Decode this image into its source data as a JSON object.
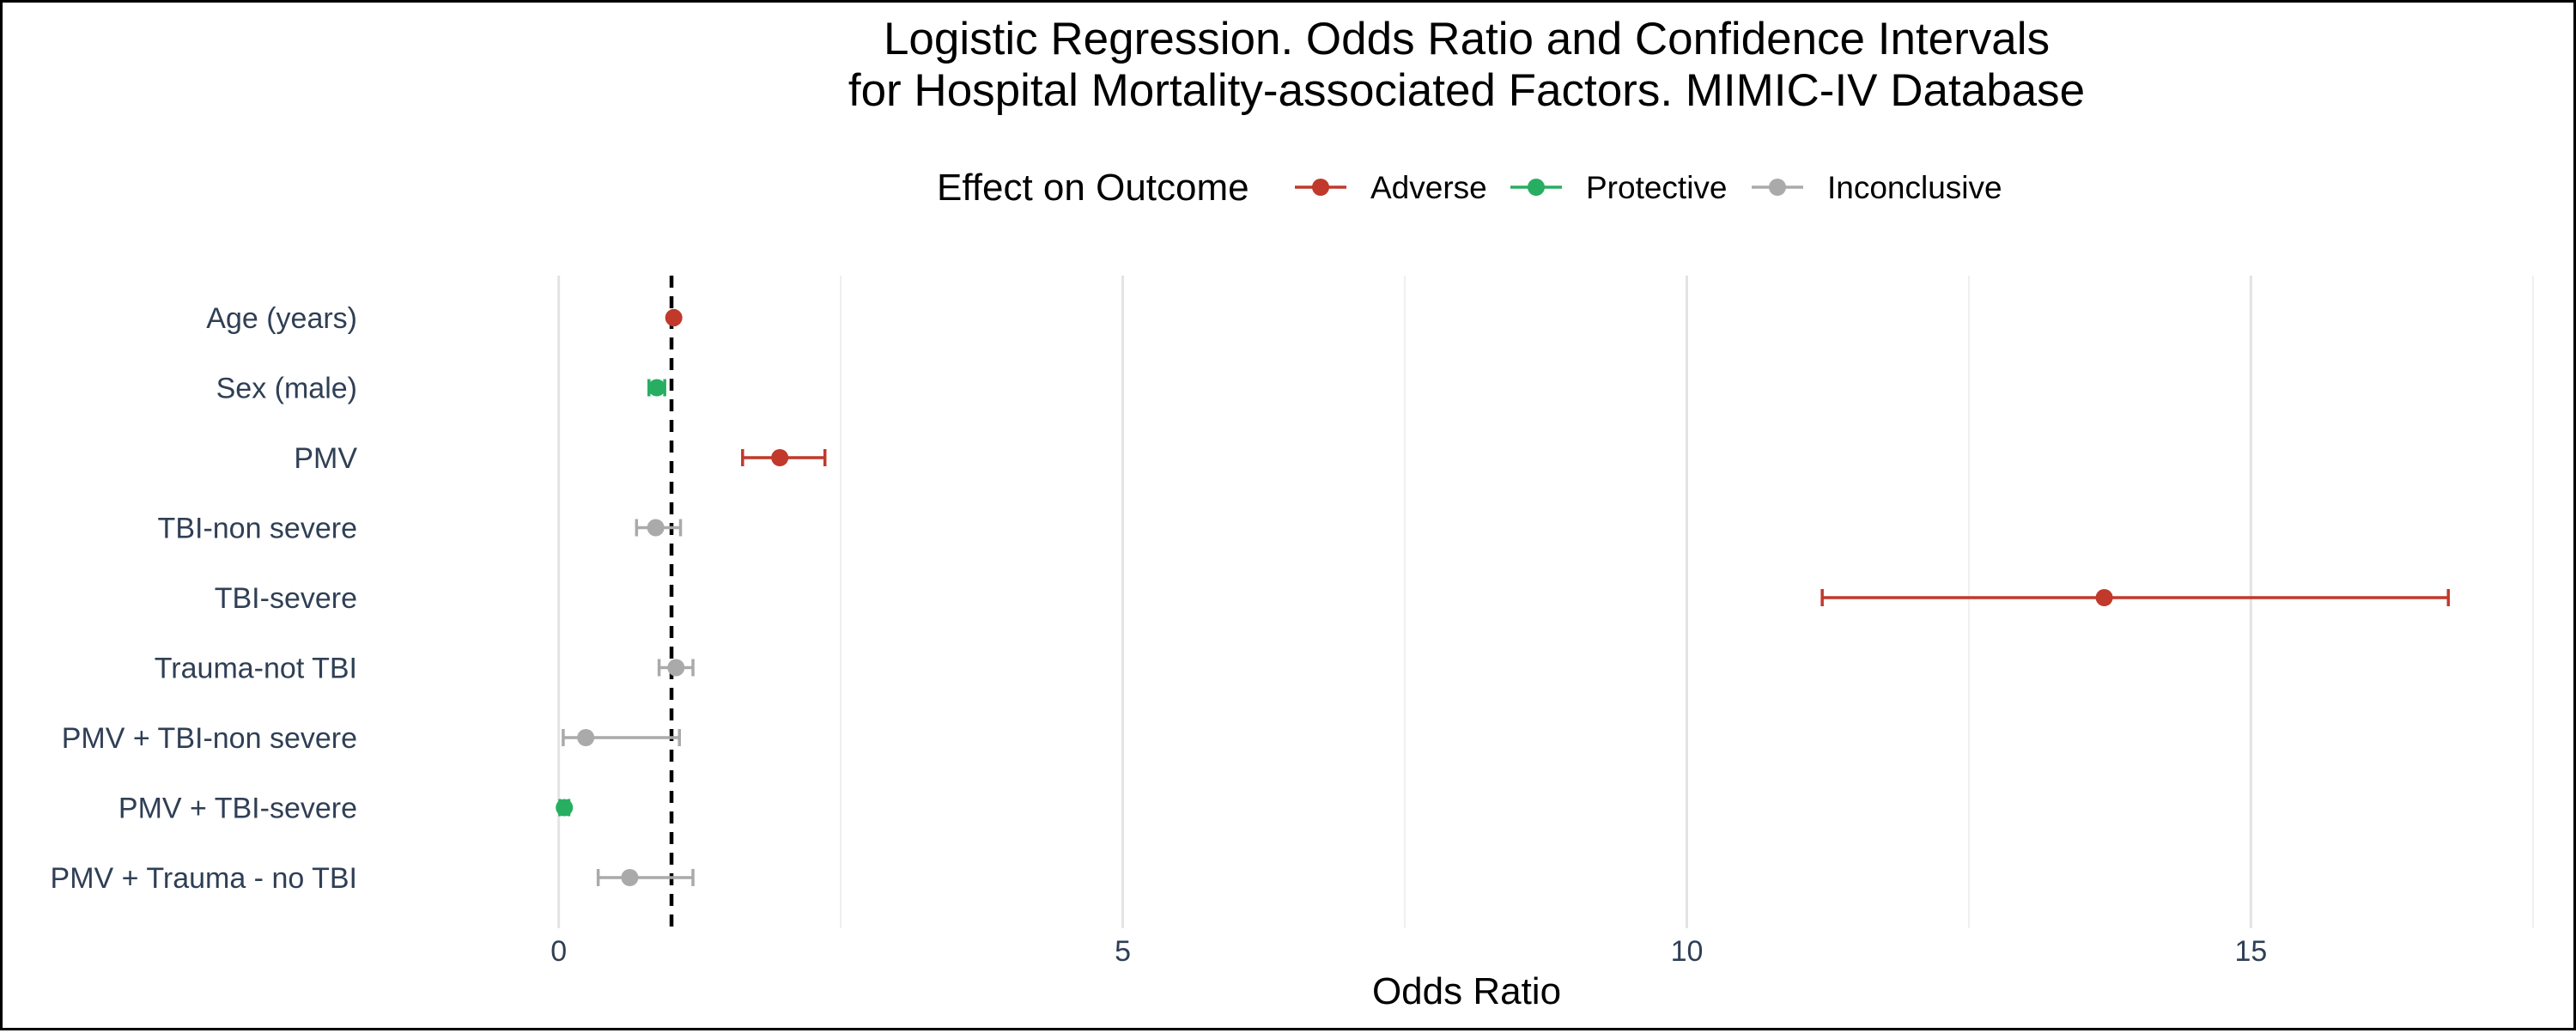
{
  "chart_data": {
    "type": "scatter",
    "subtype": "forest-plot",
    "title_line1": "Logistic Regression. Odds Ratio and Confidence Intervals",
    "title_line2": "for Hospital Mortality-associated Factors. MIMIC-IV Database",
    "xlabel": "Odds Ratio",
    "ylabel": "",
    "xlim": [
      -1.2,
      17.6
    ],
    "xticks": [
      "0",
      "5",
      "10",
      "15"
    ],
    "reference_line": 1,
    "grid": "vertical",
    "legend": {
      "title": "Effect on Outcome",
      "placement": "top",
      "entries": [
        {
          "label": "Adverse",
          "color": "#c0392b"
        },
        {
          "label": "Protective",
          "color": "#27ae60"
        },
        {
          "label": "Inconclusive",
          "color": "#aaaaaa"
        }
      ]
    },
    "points": [
      {
        "label": "Age (years)",
        "or": 1.02,
        "lo": 1.01,
        "hi": 1.03,
        "effect": "Adverse",
        "color": "#c0392b"
      },
      {
        "label": "Sex (male)",
        "or": 0.87,
        "lo": 0.8,
        "hi": 0.94,
        "effect": "Protective",
        "color": "#27ae60"
      },
      {
        "label": "PMV",
        "or": 1.96,
        "lo": 1.63,
        "hi": 2.36,
        "effect": "Adverse",
        "color": "#c0392b"
      },
      {
        "label": "TBI-non severe",
        "or": 0.86,
        "lo": 0.69,
        "hi": 1.08,
        "effect": "Inconclusive",
        "color": "#aaaaaa"
      },
      {
        "label": "TBI-severe",
        "or": 13.7,
        "lo": 11.2,
        "hi": 16.75,
        "effect": "Adverse",
        "color": "#c0392b"
      },
      {
        "label": "Trauma-not TBI",
        "or": 1.04,
        "lo": 0.89,
        "hi": 1.19,
        "effect": "Inconclusive",
        "color": "#aaaaaa"
      },
      {
        "label": "PMV + TBI-non severe",
        "or": 0.24,
        "lo": 0.04,
        "hi": 1.07,
        "effect": "Inconclusive",
        "color": "#aaaaaa"
      },
      {
        "label": "PMV + TBI-severe",
        "or": 0.05,
        "lo": 0.01,
        "hi": 0.09,
        "effect": "Protective",
        "color": "#27ae60"
      },
      {
        "label": "PMV + Trauma - no TBI",
        "or": 0.63,
        "lo": 0.35,
        "hi": 1.19,
        "effect": "Inconclusive",
        "color": "#aaaaaa"
      }
    ]
  }
}
